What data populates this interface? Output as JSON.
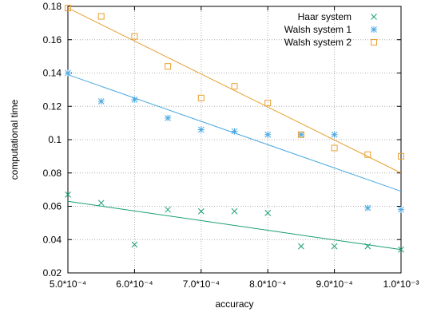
{
  "chart_data": {
    "type": "scatter",
    "title": "",
    "xlabel": "accuracy",
    "ylabel": "computational time",
    "xlim": [
      0.0005,
      0.001
    ],
    "ylim": [
      0.02,
      0.18
    ],
    "grid": true,
    "legend_position": "top-right",
    "x_ticks": [
      0.0005,
      0.0006,
      0.0007,
      0.0008,
      0.0009,
      0.001
    ],
    "x_tick_labels": [
      "5.0*10⁻⁴",
      "6.0*10⁻⁴",
      "7.0*10⁻⁴",
      "8.0*10⁻⁴",
      "9.0*10⁻⁴",
      "1.0*10⁻³"
    ],
    "y_ticks": [
      0.02,
      0.04,
      0.06,
      0.08,
      0.1,
      0.12,
      0.14,
      0.16,
      0.18
    ],
    "y_tick_labels": [
      "0.02",
      "0.04",
      "0.06",
      "0.08",
      "0.1",
      "0.12",
      "0.14",
      "0.16",
      "0.18"
    ],
    "series": [
      {
        "name": "Haar system",
        "color": "#1a9e77",
        "marker": "x",
        "x": [
          0.0005,
          0.00055,
          0.0006,
          0.00065,
          0.0007,
          0.00075,
          0.0008,
          0.00085,
          0.0009,
          0.00095,
          0.001
        ],
        "y": [
          0.067,
          0.062,
          0.037,
          0.058,
          0.057,
          0.057,
          0.056,
          0.036,
          0.036,
          0.036,
          0.034
        ],
        "fit": {
          "x": [
            0.0005,
            0.001
          ],
          "y": [
            0.063,
            0.034
          ]
        }
      },
      {
        "name": "Walsh system 1",
        "color": "#4aa8e0",
        "marker": "star",
        "x": [
          0.0005,
          0.00055,
          0.0006,
          0.00065,
          0.0007,
          0.00075,
          0.0008,
          0.00085,
          0.0009,
          0.00095,
          0.001
        ],
        "y": [
          0.14,
          0.123,
          0.124,
          0.113,
          0.106,
          0.105,
          0.103,
          0.103,
          0.103,
          0.059,
          0.058
        ],
        "fit": {
          "x": [
            0.0005,
            0.001
          ],
          "y": [
            0.139,
            0.069
          ]
        }
      },
      {
        "name": "Walsh system 2",
        "color": "#e8a030",
        "marker": "square",
        "x": [
          0.0005,
          0.00055,
          0.0006,
          0.00065,
          0.0007,
          0.00075,
          0.0008,
          0.00085,
          0.0009,
          0.00095,
          0.001
        ],
        "y": [
          0.179,
          0.174,
          0.162,
          0.144,
          0.125,
          0.132,
          0.122,
          0.103,
          0.095,
          0.091,
          0.09
        ],
        "fit": {
          "x": [
            0.0005,
            0.001
          ],
          "y": [
            0.179,
            0.08
          ]
        }
      }
    ]
  }
}
